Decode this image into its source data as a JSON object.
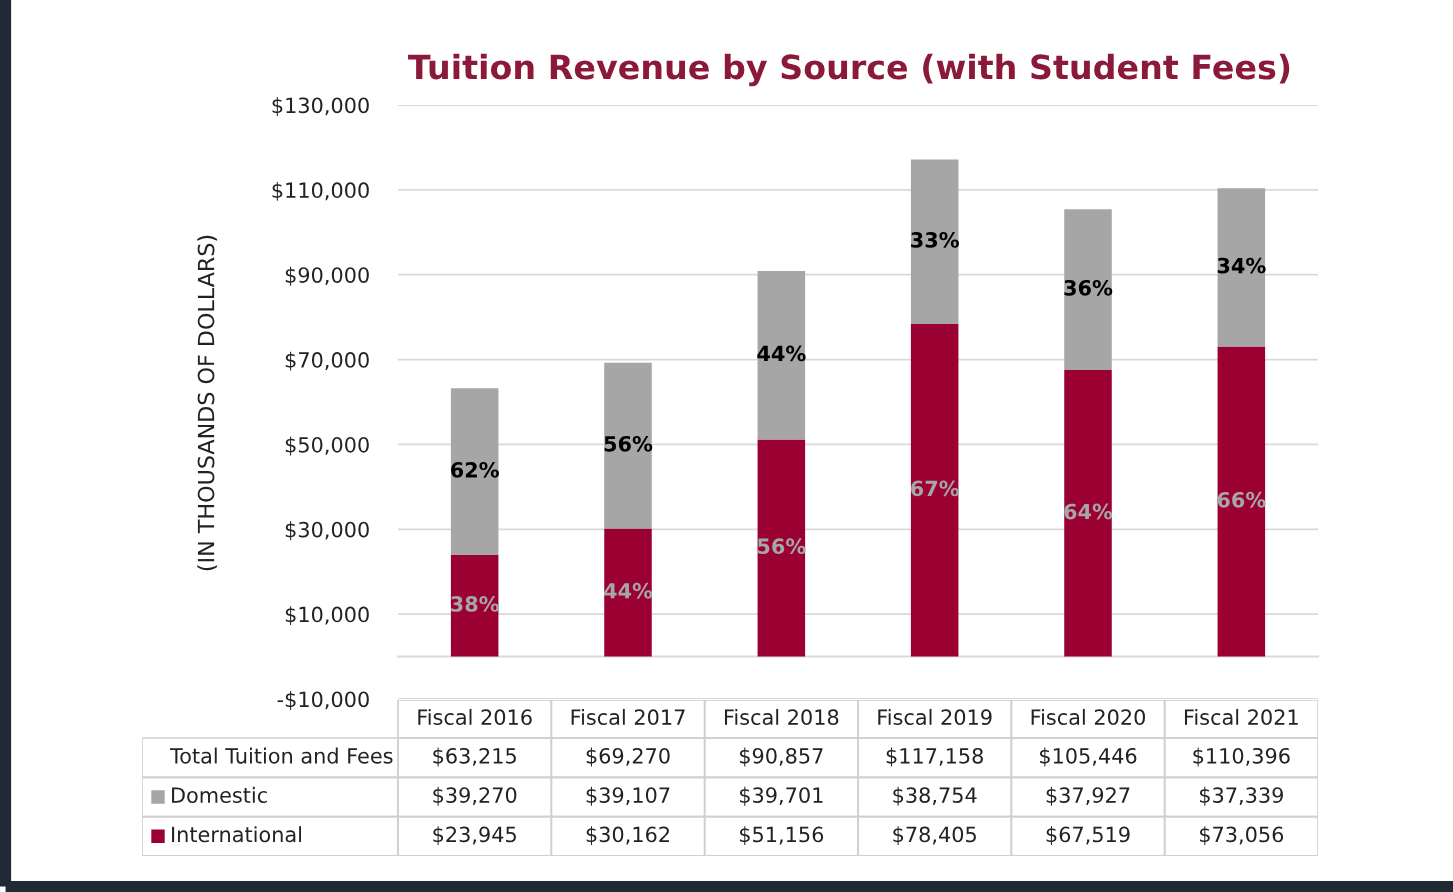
{
  "chart_data": {
    "type": "bar",
    "title": "Tuition Revenue by Source (with Student Fees)",
    "ylabel": "(IN THOUSANDS OF DOLLARS)",
    "categories": [
      "Fiscal 2016",
      "Fiscal 2017",
      "Fiscal 2018",
      "Fiscal 2019",
      "Fiscal 2020",
      "Fiscal 2021"
    ],
    "stacked": true,
    "series": [
      {
        "name": "International",
        "color": "#9b0033",
        "values": [
          23945,
          30162,
          51156,
          78405,
          67519,
          73056
        ],
        "value_labels": [
          "$23,945",
          "$30,162",
          "$51,156",
          "$78,405",
          "$67,519",
          "$73,056"
        ]
      },
      {
        "name": "Domestic",
        "color": "#a6a6a6",
        "values": [
          39270,
          39107,
          39701,
          38754,
          37927,
          37339
        ],
        "value_labels": [
          "$39,270",
          "$39,107",
          "$39,701",
          "$38,754",
          "$37,927",
          "$37,339"
        ]
      }
    ],
    "ylim": [
      -10000,
      130000
    ],
    "yticks": [
      {
        "value": -10000,
        "label": "-$10,000"
      },
      {
        "value": 10000,
        "label": "$10,000"
      },
      {
        "value": 30000,
        "label": "$30,000"
      },
      {
        "value": 50000,
        "label": "$50,000"
      },
      {
        "value": 70000,
        "label": "$70,000"
      },
      {
        "value": 90000,
        "label": "$90,000"
      },
      {
        "value": 110000,
        "label": "$110,000"
      },
      {
        "value": 130000,
        "label": "$130,000"
      }
    ],
    "grid": "y",
    "legend": "bottom",
    "annotations": [
      "Total Tuition and Fees",
      "$63,215",
      "$69,270",
      "$90,857",
      "$117,158",
      "$105,446",
      "$110,396",
      "38%",
      "62%",
      "44%",
      "56%",
      "56%",
      "44%",
      "67%",
      "33%",
      "64%",
      "36%",
      "66%",
      "34%"
    ]
  }
}
